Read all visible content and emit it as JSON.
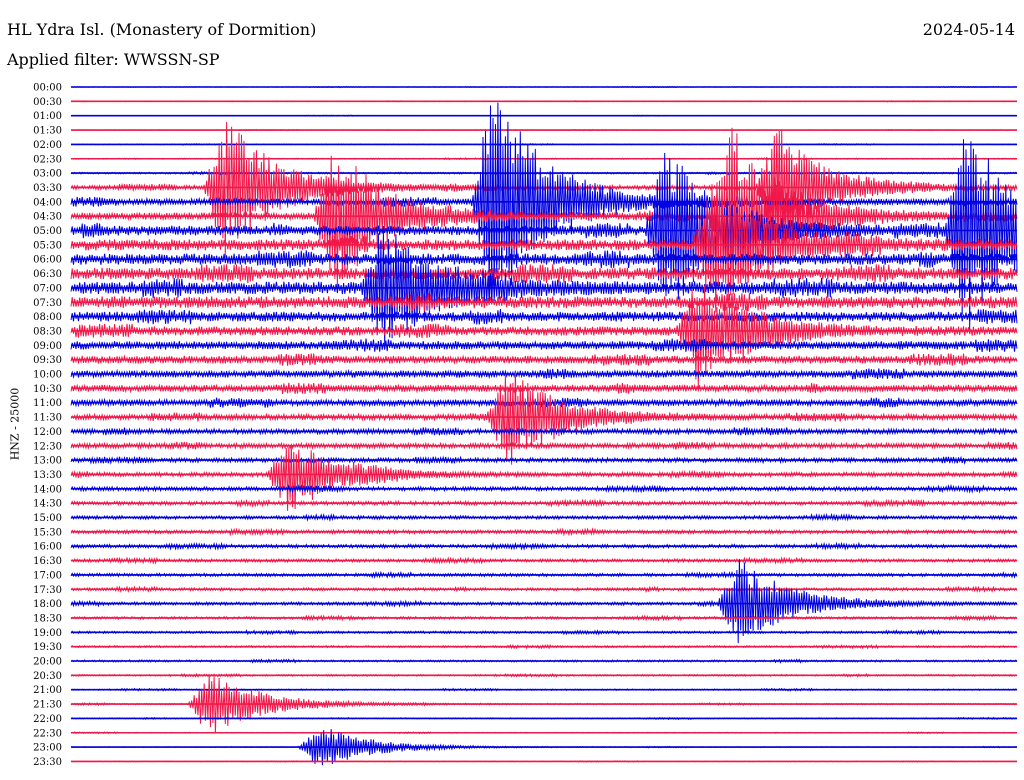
{
  "header": {
    "station": "HL Ydra Isl. (Monastery of Dormition)",
    "date": "2024-05-14",
    "filter": "Applied filter: WWSSN-SP"
  },
  "colors": {
    "trace_a": "#0000e0",
    "trace_b": "#f0184a",
    "text": "#000000"
  },
  "chart_data": {
    "type": "line",
    "chart_kind": "helicorder",
    "ylabel": "HNZ - 25000",
    "row_labels": [
      "00:00",
      "00:30",
      "01:00",
      "01:30",
      "02:00",
      "02:30",
      "03:00",
      "03:30",
      "04:00",
      "04:30",
      "05:00",
      "05:30",
      "06:00",
      "06:30",
      "07:00",
      "07:30",
      "08:00",
      "08:30",
      "09:00",
      "09:30",
      "10:00",
      "10:30",
      "11:00",
      "11:30",
      "12:00",
      "12:30",
      "13:00",
      "13:30",
      "14:00",
      "14:30",
      "15:00",
      "15:30",
      "16:00",
      "16:30",
      "17:00",
      "17:30",
      "18:00",
      "18:30",
      "19:00",
      "19:30",
      "20:00",
      "20:30",
      "21:00",
      "21:30",
      "22:00",
      "22:30",
      "23:00",
      "23:30"
    ],
    "row_minutes": 30,
    "row_colors_alternate": [
      "blue",
      "red"
    ],
    "relative_activity": [
      0.05,
      0.05,
      0.05,
      0.05,
      0.06,
      0.08,
      0.12,
      0.3,
      0.45,
      0.5,
      0.7,
      0.8,
      0.8,
      0.85,
      0.9,
      0.85,
      0.7,
      0.65,
      0.6,
      0.55,
      0.5,
      0.5,
      0.45,
      0.4,
      0.35,
      0.35,
      0.3,
      0.3,
      0.28,
      0.26,
      0.25,
      0.25,
      0.24,
      0.22,
      0.22,
      0.2,
      0.22,
      0.18,
      0.16,
      0.14,
      0.14,
      0.12,
      0.1,
      0.1,
      0.08,
      0.07,
      0.06,
      0.05
    ],
    "events": [
      {
        "time": "03:30",
        "minute": 4.5,
        "relative_amplitude": 1.3
      },
      {
        "time": "04:00",
        "minute": 13.0,
        "relative_amplitude": 2.2
      },
      {
        "time": "04:30",
        "minute": 20.5,
        "relative_amplitude": 1.7
      },
      {
        "time": "04:30",
        "minute": 8.0,
        "relative_amplitude": 1.3
      },
      {
        "time": "05:00",
        "minute": 18.5,
        "relative_amplitude": 1.6
      },
      {
        "time": "05:00",
        "minute": 28.0,
        "relative_amplitude": 1.9
      },
      {
        "time": "03:30",
        "minute": 22.0,
        "relative_amplitude": 1.1
      },
      {
        "time": "05:30",
        "minute": 20.0,
        "relative_amplitude": 1.3
      },
      {
        "time": "07:00",
        "minute": 9.5,
        "relative_amplitude": 1.2
      },
      {
        "time": "08:30",
        "minute": 19.5,
        "relative_amplitude": 1.0
      },
      {
        "time": "11:30",
        "minute": 13.5,
        "relative_amplitude": 0.9
      },
      {
        "time": "13:30",
        "minute": 6.5,
        "relative_amplitude": 0.7
      },
      {
        "time": "18:00",
        "minute": 20.8,
        "relative_amplitude": 0.8
      },
      {
        "time": "21:30",
        "minute": 4.0,
        "relative_amplitude": 0.6
      },
      {
        "time": "23:00",
        "minute": 7.5,
        "relative_amplitude": 0.4
      }
    ]
  }
}
